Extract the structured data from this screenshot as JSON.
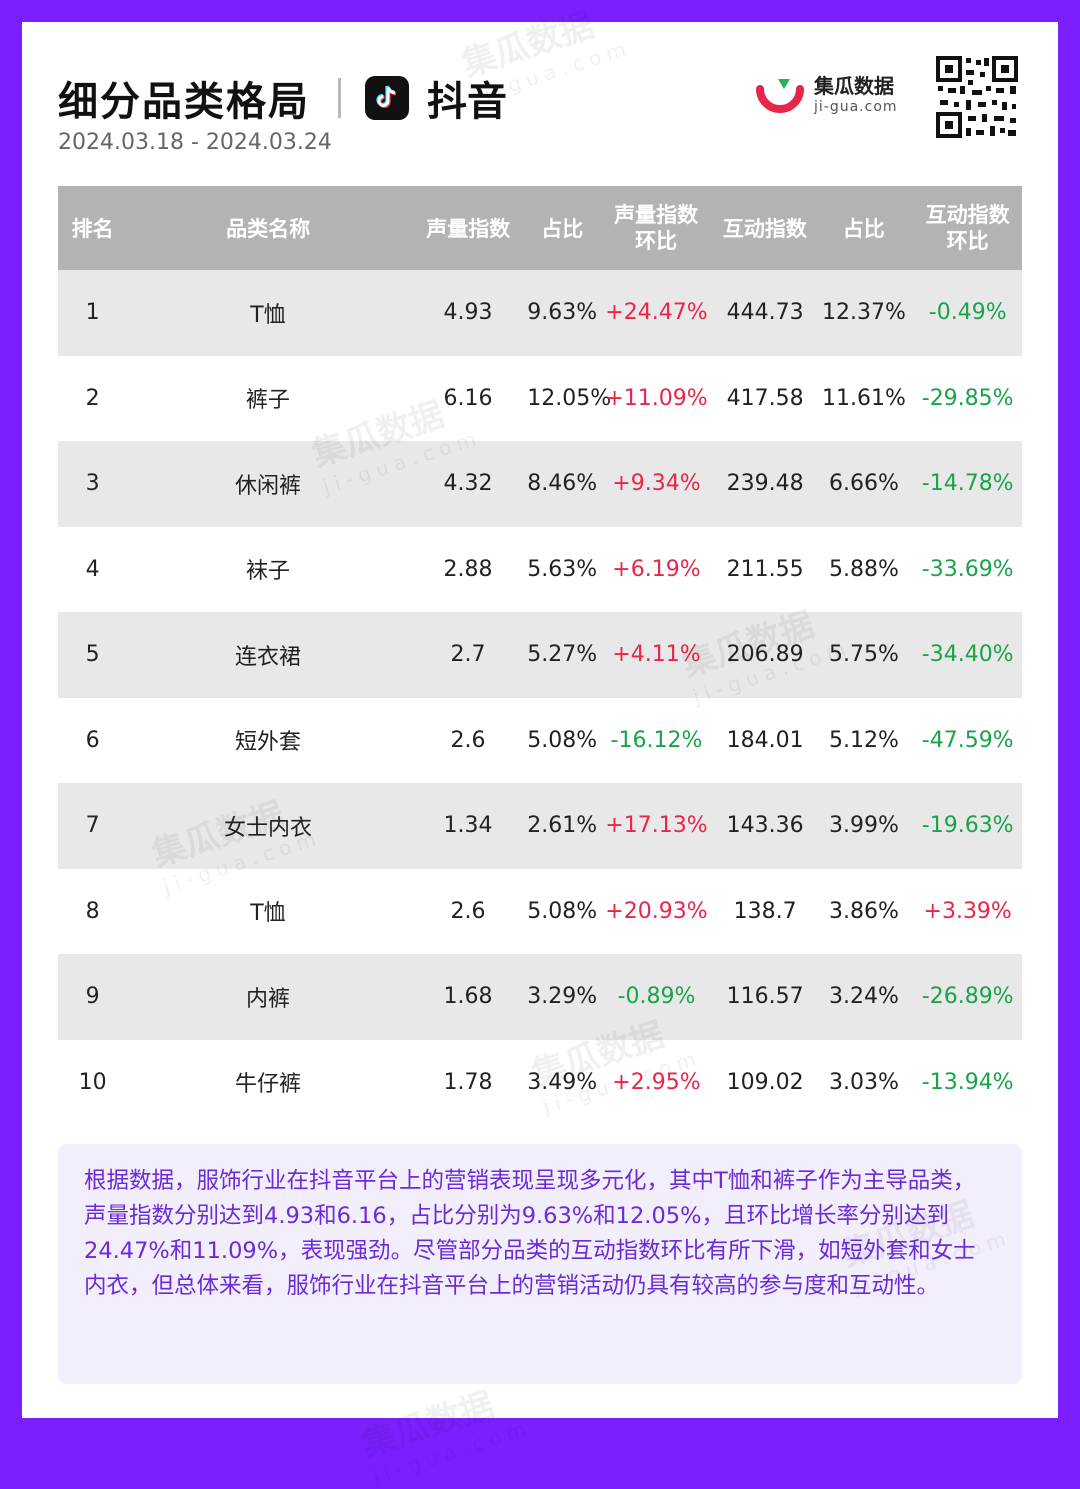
{
  "header": {
    "title": "细分品类格局",
    "platform": "抖音",
    "date_range": "2024.03.18 - 2024.03.24",
    "brand_name": "集瓜数据",
    "brand_domain": "ji-gua.com",
    "tiktok_icon": "tiktok-note-icon"
  },
  "colors": {
    "frame": "#7b1fff",
    "header_bg": "#b3b3b3",
    "positive": "#e8264a",
    "negative": "#1aa34a",
    "summary_text": "#6a2bd9",
    "brand_red": "#e8264a",
    "brand_green": "#22b35a"
  },
  "table": {
    "columns": [
      "排名",
      "品类名称",
      "声量指数",
      "占比",
      "声量指数环比",
      "互动指数",
      "占比",
      "互动指数环比"
    ],
    "column_lines": {
      "vol_change": [
        "声量指数",
        "环比"
      ],
      "inter_change": [
        "互动指数",
        "环比"
      ]
    },
    "rows": [
      {
        "rank": "1",
        "name": "T恤",
        "vol": "4.93",
        "share": "9.63%",
        "vol_change": "+24.47%",
        "inter": "444.73",
        "inter_share": "12.37%",
        "inter_change": "-0.49%"
      },
      {
        "rank": "2",
        "name": "裤子",
        "vol": "6.16",
        "share": "12.05%",
        "vol_change": "+11.09%",
        "inter": "417.58",
        "inter_share": "11.61%",
        "inter_change": "-29.85%"
      },
      {
        "rank": "3",
        "name": "休闲裤",
        "vol": "4.32",
        "share": "8.46%",
        "vol_change": "+9.34%",
        "inter": "239.48",
        "inter_share": "6.66%",
        "inter_change": "-14.78%"
      },
      {
        "rank": "4",
        "name": "袜子",
        "vol": "2.88",
        "share": "5.63%",
        "vol_change": "+6.19%",
        "inter": "211.55",
        "inter_share": "5.88%",
        "inter_change": "-33.69%"
      },
      {
        "rank": "5",
        "name": "连衣裙",
        "vol": "2.7",
        "share": "5.27%",
        "vol_change": "+4.11%",
        "inter": "206.89",
        "inter_share": "5.75%",
        "inter_change": "-34.40%"
      },
      {
        "rank": "6",
        "name": "短外套",
        "vol": "2.6",
        "share": "5.08%",
        "vol_change": "-16.12%",
        "inter": "184.01",
        "inter_share": "5.12%",
        "inter_change": "-47.59%"
      },
      {
        "rank": "7",
        "name": "女士内衣",
        "vol": "1.34",
        "share": "2.61%",
        "vol_change": "+17.13%",
        "inter": "143.36",
        "inter_share": "3.99%",
        "inter_change": "-19.63%"
      },
      {
        "rank": "8",
        "name": "T恤",
        "vol": "2.6",
        "share": "5.08%",
        "vol_change": "+20.93%",
        "inter": "138.7",
        "inter_share": "3.86%",
        "inter_change": "+3.39%"
      },
      {
        "rank": "9",
        "name": "内裤",
        "vol": "1.68",
        "share": "3.29%",
        "vol_change": "-0.89%",
        "inter": "116.57",
        "inter_share": "3.24%",
        "inter_change": "-26.89%"
      },
      {
        "rank": "10",
        "name": "牛仔裤",
        "vol": "1.78",
        "share": "3.49%",
        "vol_change": "+2.95%",
        "inter": "109.02",
        "inter_share": "3.03%",
        "inter_change": "-13.94%"
      }
    ]
  },
  "summary": "根据数据，服饰行业在抖音平台上的营销表现呈现多元化，其中T恤和裤子作为主导品类，声量指数分别达到4.93和6.16，占比分别为9.63%和12.05%，且环比增长率分别达到24.47%和11.09%，表现强劲。尽管部分品类的互动指数环比有所下滑，如短外套和女士内衣，但总体来看，服饰行业在抖音平台上的营销活动仍具有较高的参与度和互动性。",
  "watermark": {
    "text": "集瓜数据",
    "domain": "ji-gua.com"
  }
}
